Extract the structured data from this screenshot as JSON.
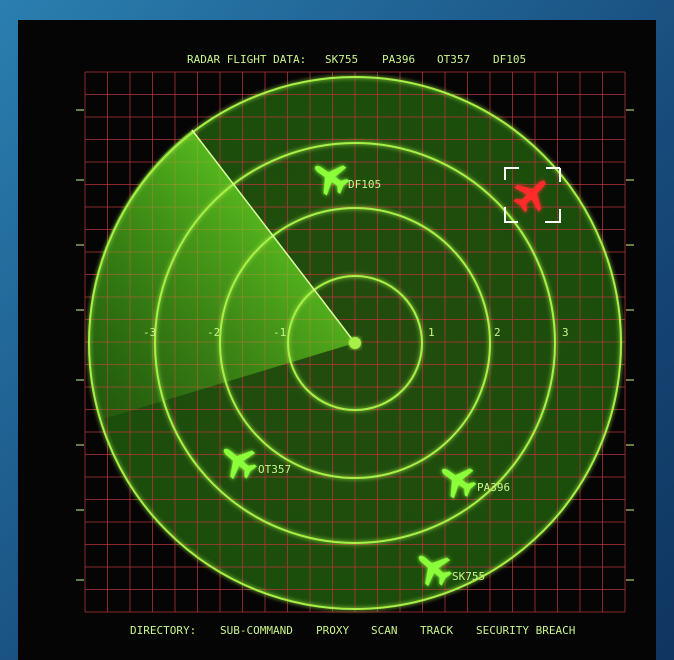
{
  "header": {
    "title": "RADAR FLIGHT DATA:",
    "flights": [
      "SK755",
      "PA396",
      "OT357",
      "DF105"
    ]
  },
  "axis_labels": [
    "-3",
    "-2",
    "-1",
    "1",
    "2",
    "3"
  ],
  "targets": [
    "DF105",
    "OT357",
    "PA396",
    "SK755"
  ],
  "footer": [
    "DIRECTORY:",
    "SUB-COMMAND",
    "PROXY",
    "SCAN",
    "TRACK",
    "SECURITY BREACH"
  ]
}
